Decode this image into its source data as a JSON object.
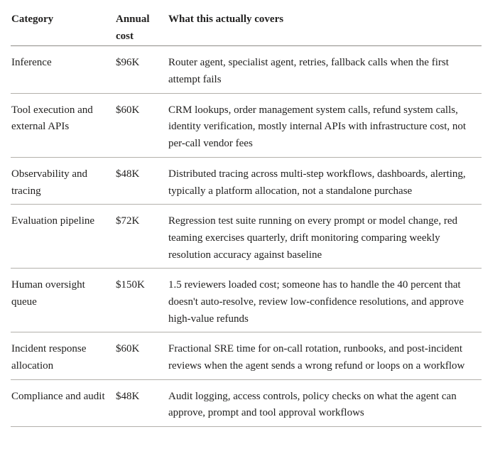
{
  "table": {
    "headers": {
      "category": "Category",
      "annual_cost": "Annual cost",
      "coverage": "What this actually covers"
    },
    "rows": [
      {
        "category": "Inference",
        "annual_cost": "$96K",
        "coverage": "Router agent, specialist agent, retries, fallback calls when the first attempt fails"
      },
      {
        "category": "Tool execution and external APIs",
        "annual_cost": "$60K",
        "coverage": "CRM lookups, order management system calls, refund system calls, identity verification, mostly internal APIs with infrastructure cost, not per-call vendor fees"
      },
      {
        "category": "Observability and tracing",
        "annual_cost": "$48K",
        "coverage": "Distributed tracing across multi-step workflows, dashboards, alerting, typically a platform allocation, not a standalone purchase"
      },
      {
        "category": "Evaluation pipeline",
        "annual_cost": "$72K",
        "coverage": "Regression test suite running on every prompt or model change, red teaming exercises quarterly, drift monitoring comparing weekly resolution accuracy against baseline"
      },
      {
        "category": "Human oversight queue",
        "annual_cost": "$150K",
        "coverage": "1.5 reviewers loaded cost; someone has to handle the 40 percent that doesn't auto-resolve, review low-confidence resolutions, and approve high-value refunds"
      },
      {
        "category": "Incident response allocation",
        "annual_cost": "$60K",
        "coverage": "Fractional SRE time for on-call rotation, runbooks, and post-incident reviews when the agent sends a wrong refund or loops on a workflow"
      },
      {
        "category": "Compliance and audit",
        "annual_cost": "$48K",
        "coverage": "Audit logging, access controls, policy checks on what the agent can approve, prompt and tool approval workflows"
      }
    ]
  },
  "colors": {
    "text": "#222120",
    "header_rule": "#8e8b87",
    "row_rule": "#b3b0ab",
    "background": "#ffffff"
  }
}
